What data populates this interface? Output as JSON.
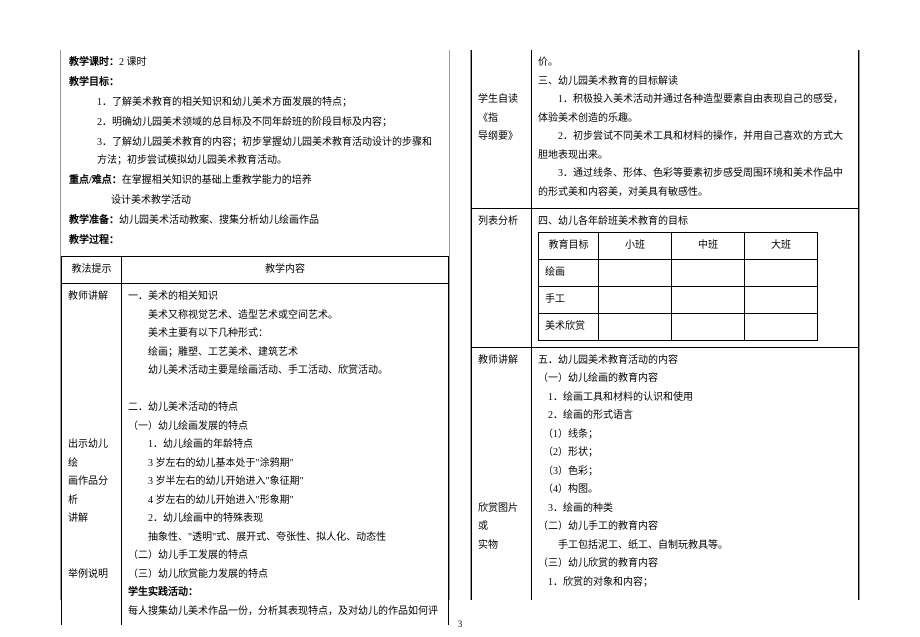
{
  "page_number": "3",
  "left": {
    "header": {
      "l1_label": "教学课时：",
      "l1_val": "2 课时",
      "l2_label": "教学目标：",
      "g1": "1．了解美术教育的相关知识和幼儿美术方面发展的特点；",
      "g2": "2．明确幼儿园美术领域的总目标及不同年龄班的阶段目标及内容；",
      "g3": "3．了解幼儿园美术教育的内容；初步掌握幼儿园美术教育活动设计的步骤和方法；初步尝试模拟幼儿园美术教育活动。",
      "l3_label": "重点/难点：",
      "l3_val": "在掌握相关知识的基础上重教学能力的培养",
      "l3_sub": "设计美术教学活动",
      "l4_label": "教学准备：",
      "l4_val": "幼儿园美术活动教案、搜集分析幼儿绘画作品",
      "l5_label": "教学过程："
    },
    "table": {
      "h1": "教法提示",
      "h2": "教学内容",
      "r1_left": "教师讲解",
      "r1_lines": [
        "一．美术的相关知识",
        "　　美术又称视觉艺术、造型艺术或空间艺术。",
        "　　美术主要有以下几种形式：",
        "　　绘画；雕塑、工艺美术、建筑艺术",
        "　　幼儿美术活动主要是绘画活动、手工活动、欣赏活动。",
        "　",
        "二．幼儿美术活动的特点",
        "（一）幼儿绘画发展的特点"
      ],
      "r2_left_a": "出示幼儿绘",
      "r2_left_b": "画作品分析",
      "r2_left_c": "讲解",
      "r2_lines": [
        "　　1．幼儿绘画的年龄特点",
        "　　3 岁左右的幼儿基本处于\"涂鸦期\"",
        "　　3 岁半左右的幼儿开始进入\"象征期\"",
        "　　4 岁左右的幼儿开始进入\"形象期\"",
        "　　2．幼儿绘画中的特殊表现"
      ],
      "r3_left": "举例说明",
      "r3_lines": [
        "　　抽象性、\"透明\"式、展开式、夸张性、拟人化、动态性",
        "（二）幼儿手工发展的特点",
        "（三）幼儿欣赏能力发展的特点"
      ],
      "r4_left": "",
      "r4_bold": "学生实践活动：",
      "r4_text": "每人搜集幼儿美术作品一份，分析其表现特点，及对幼儿的作品如何评"
    }
  },
  "right": {
    "top": {
      "left_a": "学生自读《指",
      "left_b": "导纲要》",
      "cont": "价。",
      "sec3_title": "三、幼儿园美术教育的目标解读",
      "p1": "　　1．积极投入美术活动并通过各种造型要素自由表现自己的感受，体验美术创造的乐趣。",
      "p2": "　　2．初步尝试不同美术工具和材料的操作，并用自己喜欢的方式大胆地表现出来。",
      "p3": "　　3．通过线条、形体、色彩等要素初步感受周围环境和美术作品中的形式美和内容美，对美具有敏感性。"
    },
    "mid": {
      "left": "列表分析",
      "sec4_title": "四、幼儿各年龄班美术教育的目标",
      "grid": {
        "h1": "教育目标",
        "h2": "小班",
        "h3": "中班",
        "h4": "大班",
        "r1": "绘画",
        "r2": "手工",
        "r3": "美术欣赏"
      }
    },
    "bot": {
      "left": "教师讲解",
      "sec5_title": "五．幼儿园美术教育活动的内容",
      "lines_a": [
        "（一）幼儿绘画的教育内容",
        "　1．绘画工具和材料的认识和使用",
        "　2．绘画的形式语言",
        "　（1）线条；",
        "　（2）形状；",
        "　（3）色彩；",
        "　（4）构图。"
      ],
      "left2_a": "欣赏图片或",
      "left2_b": "实物",
      "lines_b": [
        "　3．绘画的种类",
        "（二）幼儿手工的教育内容",
        "　　手工包括泥工、纸工、自制玩教具等。",
        "（三）幼儿欣赏的教育内容",
        "　1．欣赏的对象和内容；"
      ]
    }
  }
}
